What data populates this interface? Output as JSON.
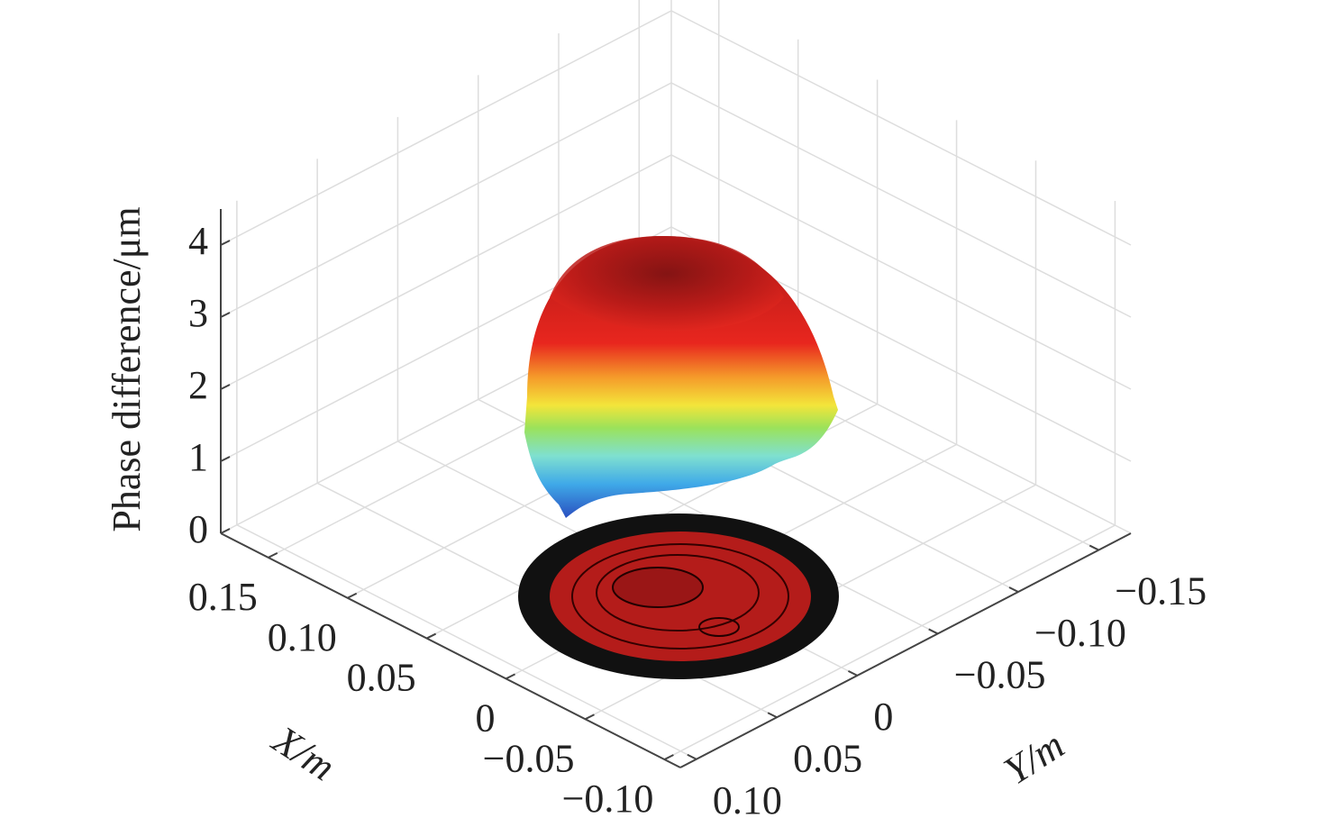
{
  "chart_data": {
    "type": "surface",
    "xlabel": "X/m",
    "ylabel": "Y/m",
    "zlabel": "Phase difference/μm",
    "xlim": [
      0.18,
      -0.11
    ],
    "xticks": [
      {
        "value": 0.15,
        "label": "0.15"
      },
      {
        "value": 0.1,
        "label": "0.10"
      },
      {
        "value": 0.05,
        "label": "0.05"
      },
      0,
      {
        "value": -0.05,
        "label": "−0.05"
      },
      {
        "value": -0.1,
        "label": "−0.10"
      }
    ],
    "ylim": [
      0.11,
      -0.17
    ],
    "yticks": [
      {
        "value": 0.1,
        "label": "0.10"
      },
      {
        "value": 0.05,
        "label": "0.05"
      },
      0,
      {
        "value": -0.05,
        "label": "−0.05"
      },
      {
        "value": -0.1,
        "label": "−0.10"
      },
      {
        "value": -0.15,
        "label": "−0.15"
      }
    ],
    "zlim": [
      0,
      4.5
    ],
    "zticks": [
      0,
      1,
      2,
      3,
      4
    ],
    "grid": true
  }
}
